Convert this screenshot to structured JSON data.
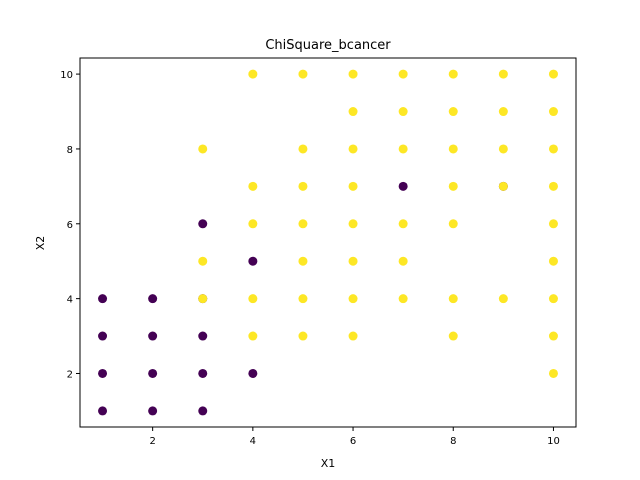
{
  "chart_data": {
    "type": "scatter",
    "title": "ChiSquare_bcancer",
    "xlabel": "X1",
    "ylabel": "X2",
    "xlim": [
      0.55,
      10.45
    ],
    "ylim": [
      0.57,
      10.43
    ],
    "xticks": [
      2,
      4,
      6,
      8,
      10
    ],
    "yticks": [
      2,
      4,
      6,
      8,
      10
    ],
    "grid": false,
    "legend": "none",
    "series": [
      {
        "class": 0,
        "color": "#440154",
        "points": [
          [
            1,
            1
          ],
          [
            1,
            2
          ],
          [
            1,
            3
          ],
          [
            1,
            4
          ],
          [
            2,
            1
          ],
          [
            2,
            2
          ],
          [
            2,
            3
          ],
          [
            2,
            4
          ],
          [
            3,
            1
          ],
          [
            3,
            2
          ],
          [
            3,
            3
          ],
          [
            3,
            4
          ],
          [
            3,
            6
          ],
          [
            4,
            2
          ],
          [
            4,
            5
          ],
          [
            7,
            7
          ],
          [
            9,
            7
          ]
        ]
      },
      {
        "class": 1,
        "color": "#fde725",
        "points": [
          [
            3,
            4
          ],
          [
            3,
            5
          ],
          [
            3,
            8
          ],
          [
            4,
            3
          ],
          [
            4,
            4
          ],
          [
            4,
            6
          ],
          [
            4,
            7
          ],
          [
            4,
            10
          ],
          [
            5,
            3
          ],
          [
            5,
            4
          ],
          [
            5,
            5
          ],
          [
            5,
            6
          ],
          [
            5,
            7
          ],
          [
            5,
            8
          ],
          [
            5,
            10
          ],
          [
            6,
            3
          ],
          [
            6,
            4
          ],
          [
            6,
            5
          ],
          [
            6,
            6
          ],
          [
            6,
            7
          ],
          [
            6,
            8
          ],
          [
            6,
            9
          ],
          [
            6,
            10
          ],
          [
            7,
            4
          ],
          [
            7,
            5
          ],
          [
            7,
            6
          ],
          [
            7,
            8
          ],
          [
            7,
            9
          ],
          [
            7,
            10
          ],
          [
            8,
            3
          ],
          [
            8,
            4
          ],
          [
            8,
            6
          ],
          [
            8,
            7
          ],
          [
            8,
            8
          ],
          [
            8,
            9
          ],
          [
            8,
            10
          ],
          [
            9,
            4
          ],
          [
            9,
            7
          ],
          [
            9,
            8
          ],
          [
            9,
            9
          ],
          [
            9,
            10
          ],
          [
            10,
            2
          ],
          [
            10,
            3
          ],
          [
            10,
            4
          ],
          [
            10,
            5
          ],
          [
            10,
            6
          ],
          [
            10,
            7
          ],
          [
            10,
            8
          ],
          [
            10,
            9
          ],
          [
            10,
            10
          ]
        ]
      }
    ]
  }
}
